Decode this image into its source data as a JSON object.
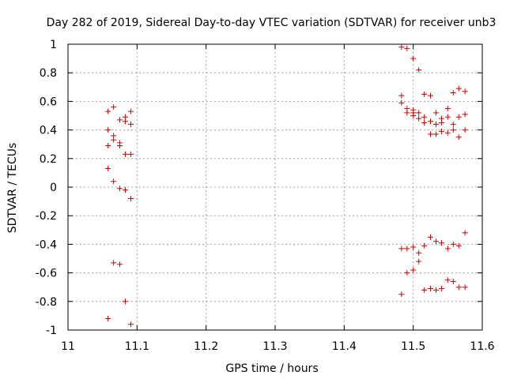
{
  "chart_data": {
    "type": "scatter",
    "title": "Day 282 of 2019, Sidereal Day-to-day VTEC variation (SDTVAR) for receiver unb3",
    "xlabel": "GPS time / hours",
    "ylabel": "SDTVAR / TECUs",
    "xlim": [
      11,
      11.6
    ],
    "ylim": [
      -1,
      1
    ],
    "xticks": [
      11,
      11.1,
      11.2,
      11.3,
      11.4,
      11.5,
      11.6
    ],
    "xtick_labels": [
      "11",
      "11.1",
      "11.2",
      "11.3",
      "11.4",
      "11.5",
      "11.6"
    ],
    "yticks": [
      -1,
      -0.8,
      -0.6,
      -0.4,
      -0.2,
      0,
      0.2,
      0.4,
      0.6,
      0.8,
      1
    ],
    "ytick_labels": [
      "-1",
      "-0.8",
      "-0.6",
      "-0.4",
      "-0.2",
      "0",
      "0.2",
      "0.4",
      "0.6",
      "0.8",
      "1"
    ],
    "grid": true,
    "marker": "+",
    "series": [
      {
        "name": "SDTVAR",
        "color": "#cc0000",
        "x": [
          11.058,
          11.058,
          11.058,
          11.058,
          11.058,
          11.066,
          11.066,
          11.066,
          11.066,
          11.066,
          11.075,
          11.075,
          11.075,
          11.075,
          11.075,
          11.083,
          11.083,
          11.083,
          11.083,
          11.083,
          11.091,
          11.091,
          11.091,
          11.091,
          11.091,
          11.483,
          11.483,
          11.483,
          11.483,
          11.483,
          11.491,
          11.491,
          11.491,
          11.491,
          11.491,
          11.5,
          11.5,
          11.5,
          11.5,
          11.5,
          11.5,
          11.508,
          11.508,
          11.508,
          11.508,
          11.508,
          11.516,
          11.516,
          11.516,
          11.516,
          11.516,
          11.525,
          11.525,
          11.525,
          11.525,
          11.525,
          11.533,
          11.533,
          11.533,
          11.533,
          11.533,
          11.541,
          11.541,
          11.541,
          11.541,
          11.541,
          11.55,
          11.55,
          11.55,
          11.55,
          11.55,
          11.558,
          11.558,
          11.558,
          11.558,
          11.558,
          11.566,
          11.566,
          11.566,
          11.566,
          11.566,
          11.575,
          11.575,
          11.575,
          11.575,
          11.575
        ],
        "y": [
          0.53,
          0.4,
          0.29,
          0.13,
          -0.92,
          0.56,
          0.36,
          0.33,
          0.04,
          -0.53,
          0.47,
          0.31,
          0.29,
          -0.01,
          -0.54,
          0.49,
          0.46,
          0.23,
          -0.02,
          -0.8,
          0.53,
          0.44,
          0.23,
          -0.08,
          -0.96,
          0.98,
          0.64,
          0.59,
          -0.43,
          -0.75,
          0.97,
          0.55,
          0.52,
          -0.43,
          -0.6,
          0.9,
          0.54,
          0.52,
          0.5,
          -0.42,
          -0.58,
          0.82,
          0.52,
          0.48,
          -0.46,
          -0.52,
          0.65,
          0.49,
          0.45,
          -0.41,
          -0.72,
          0.64,
          0.46,
          0.37,
          -0.35,
          -0.71,
          0.52,
          0.44,
          0.37,
          -0.38,
          -0.72,
          0.48,
          0.45,
          0.39,
          -0.39,
          -0.71,
          0.55,
          0.49,
          0.38,
          -0.43,
          -0.65,
          0.66,
          0.44,
          0.4,
          -0.4,
          -0.66,
          0.69,
          0.49,
          0.35,
          -0.41,
          -0.7,
          0.67,
          0.51,
          0.4,
          -0.32,
          -0.7
        ]
      }
    ]
  }
}
